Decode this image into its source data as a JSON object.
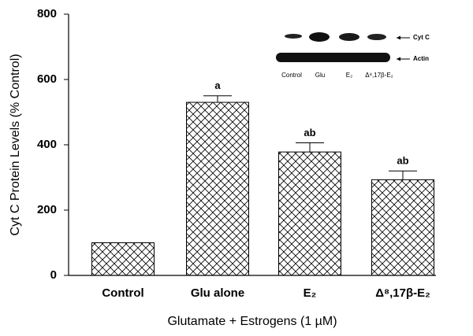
{
  "chart_data": {
    "type": "bar",
    "y_label": "Cyt C Protein Levels (% Control)",
    "x_label": "Glutamate + Estrogens (1 µM)",
    "categories": [
      "Control",
      "Glu alone",
      "E₂",
      "Δ⁸,17β-E₂"
    ],
    "values": [
      100,
      530,
      378,
      293
    ],
    "errors": [
      null,
      20,
      28,
      27
    ],
    "annotations": [
      null,
      "a",
      "ab",
      "ab"
    ],
    "color": "#000000",
    "ylim": [
      0,
      800
    ],
    "yticks": [
      0,
      200,
      400,
      600,
      800
    ],
    "inset": {
      "bands": [
        "Cyt C",
        "Actin"
      ],
      "lanes": [
        "Control",
        "Glu",
        "E₂",
        "Δ⁸,17β-E₂"
      ]
    }
  }
}
